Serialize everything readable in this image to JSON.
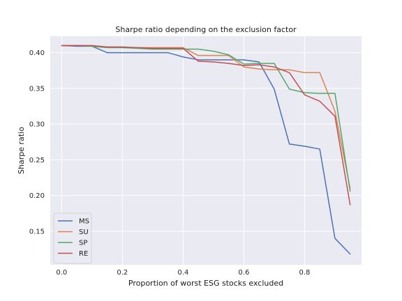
{
  "chart_data": {
    "type": "line",
    "title": "Sharpe ratio depending on the exclusion factor",
    "xlabel": "Proportion of worst ESG stocks excluded",
    "ylabel": "Sharpe ratio",
    "xlim": [
      -0.0375,
      0.9875
    ],
    "ylim": [
      0.103,
      0.423
    ],
    "x": [
      0.0,
      0.05,
      0.1,
      0.15,
      0.2,
      0.25,
      0.3,
      0.35,
      0.4,
      0.45,
      0.5,
      0.55,
      0.6,
      0.65,
      0.7,
      0.75,
      0.8,
      0.85,
      0.9,
      0.95
    ],
    "xticks": [
      0.0,
      0.2,
      0.4,
      0.6,
      0.8
    ],
    "xtick_labels": [
      "0.0",
      "0.2",
      "0.4",
      "0.6",
      "0.8"
    ],
    "yticks": [
      0.15,
      0.2,
      0.25,
      0.3,
      0.35,
      0.4
    ],
    "ytick_labels": [
      "0.15",
      "0.20",
      "0.25",
      "0.30",
      "0.35",
      "0.40"
    ],
    "grid": true,
    "legend_position": "lower-left",
    "series": [
      {
        "name": "MS",
        "color": "#4c72b0",
        "values": [
          0.41,
          0.409,
          0.409,
          0.4,
          0.4,
          0.4,
          0.4,
          0.4,
          0.394,
          0.39,
          0.39,
          0.39,
          0.39,
          0.387,
          0.349,
          0.272,
          0.269,
          0.265,
          0.14,
          0.118
        ]
      },
      {
        "name": "SU",
        "color": "#dd8452",
        "values": [
          0.41,
          0.41,
          0.409,
          0.408,
          0.407,
          0.407,
          0.407,
          0.407,
          0.407,
          0.396,
          0.396,
          0.396,
          0.38,
          0.377,
          0.376,
          0.376,
          0.372,
          0.372,
          0.318,
          0.21
        ]
      },
      {
        "name": "SP",
        "color": "#55a868",
        "values": [
          0.41,
          0.41,
          0.409,
          0.407,
          0.407,
          0.406,
          0.405,
          0.405,
          0.405,
          0.405,
          0.402,
          0.397,
          0.384,
          0.385,
          0.385,
          0.349,
          0.344,
          0.343,
          0.343,
          0.206
        ]
      },
      {
        "name": "RE",
        "color": "#c44e52",
        "values": [
          0.41,
          0.41,
          0.41,
          0.408,
          0.408,
          0.407,
          0.406,
          0.406,
          0.406,
          0.388,
          0.387,
          0.385,
          0.382,
          0.383,
          0.38,
          0.372,
          0.341,
          0.332,
          0.311,
          0.187
        ]
      }
    ]
  },
  "colors": {
    "plot_background": "#eaeaf2",
    "grid": "#ffffff"
  }
}
